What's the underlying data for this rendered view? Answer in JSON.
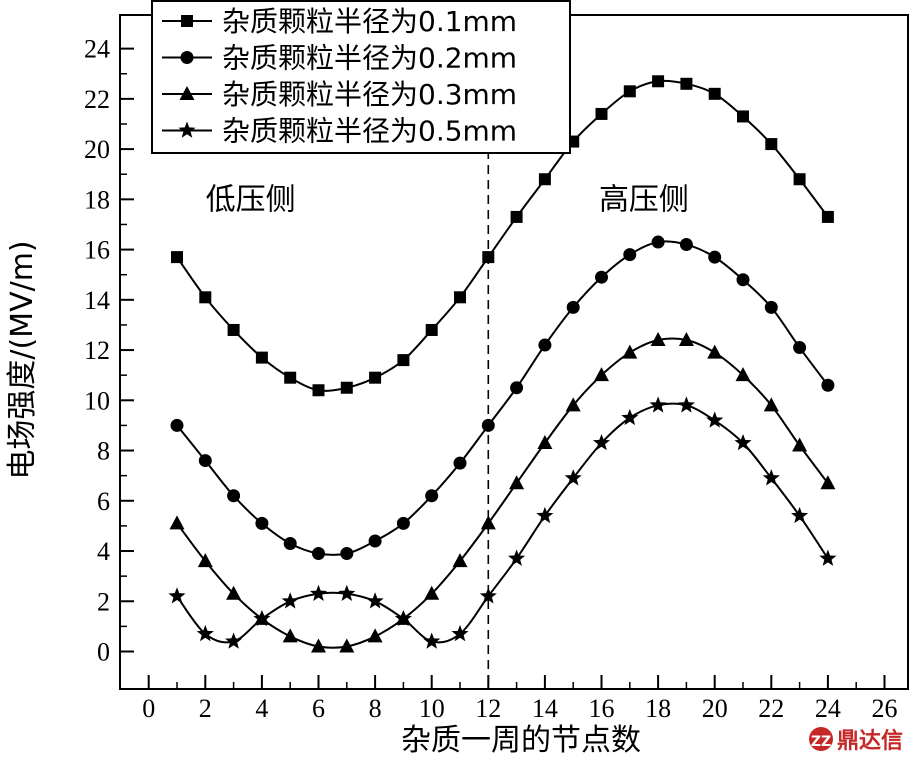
{
  "chart_data": {
    "type": "line",
    "xlabel": "杂质一周的节点数",
    "ylabel": "电场强度/(MV/m)",
    "xlim": [
      -1,
      26
    ],
    "ylim": [
      -1.2,
      24.5
    ],
    "xticks": [
      0,
      2,
      4,
      6,
      8,
      10,
      12,
      14,
      16,
      18,
      20,
      22,
      24,
      26
    ],
    "yticks": [
      0,
      2,
      4,
      6,
      8,
      10,
      12,
      14,
      16,
      18,
      20,
      22,
      24
    ],
    "x": [
      1,
      2,
      3,
      4,
      5,
      6,
      7,
      8,
      9,
      10,
      11,
      12,
      13,
      14,
      15,
      16,
      17,
      18,
      19,
      20,
      21,
      22,
      23,
      24
    ],
    "divider_x": 12,
    "legend_position": "top-left",
    "series": [
      {
        "name": "杂质颗粒半径为0.1mm",
        "marker": "square",
        "values": [
          15.7,
          14.1,
          12.8,
          11.7,
          10.9,
          10.4,
          10.5,
          10.9,
          11.6,
          12.8,
          14.1,
          15.7,
          17.3,
          18.8,
          20.3,
          21.4,
          22.3,
          22.7,
          22.6,
          22.2,
          21.3,
          20.2,
          18.8,
          17.3
        ]
      },
      {
        "name": "杂质颗粒半径为0.2mm",
        "marker": "circle",
        "values": [
          9.0,
          7.6,
          6.2,
          5.1,
          4.3,
          3.9,
          3.9,
          4.4,
          5.1,
          6.2,
          7.5,
          9.0,
          10.5,
          12.2,
          13.7,
          14.9,
          15.8,
          16.3,
          16.2,
          15.7,
          14.8,
          13.7,
          12.1,
          10.6
        ]
      },
      {
        "name": "杂质颗粒半径为0.3mm",
        "marker": "triangle",
        "values": [
          5.1,
          3.6,
          2.3,
          1.3,
          0.6,
          0.2,
          0.2,
          0.6,
          1.3,
          2.3,
          3.6,
          5.1,
          6.7,
          8.3,
          9.8,
          11.0,
          11.9,
          12.4,
          12.4,
          11.9,
          11.0,
          9.8,
          8.2,
          6.7
        ]
      },
      {
        "name": "杂质颗粒半径为0.5mm",
        "marker": "star",
        "values": [
          2.2,
          0.7,
          0.4,
          1.3,
          2.0,
          2.3,
          2.3,
          2.0,
          1.3,
          0.4,
          0.7,
          2.2,
          3.7,
          5.4,
          6.9,
          8.3,
          9.3,
          9.8,
          9.8,
          9.2,
          8.3,
          6.9,
          5.4,
          3.7
        ]
      }
    ],
    "annotations": [
      {
        "text": "低压侧",
        "x": 3.6,
        "y": 18
      },
      {
        "text": "高压侧",
        "x": 17.5,
        "y": 18
      }
    ]
  },
  "watermark": {
    "text": "鼎达信",
    "glyph": "ZZ"
  }
}
